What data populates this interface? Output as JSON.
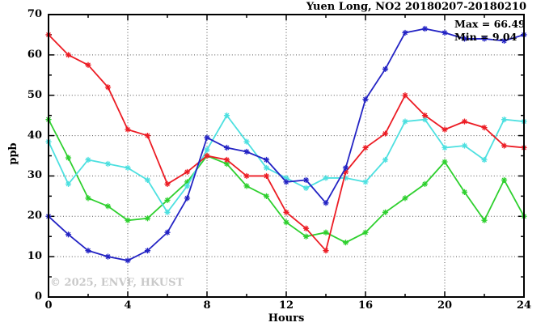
{
  "chart_data": {
    "type": "line",
    "title": "Yuen Long, NO2 20180207-20180210",
    "xlabel": "Hours",
    "ylabel": "ppb",
    "xlim": [
      0,
      24
    ],
    "ylim": [
      0,
      70
    ],
    "x_ticks": [
      0,
      4,
      8,
      12,
      16,
      20,
      24
    ],
    "y_ticks": [
      0,
      10,
      20,
      30,
      40,
      50,
      60,
      70
    ],
    "x_minor_step": 2,
    "y_minor_step": 5,
    "grid": "dotted at major ticks",
    "legend_position": "none",
    "x": [
      0,
      1,
      2,
      3,
      4,
      5,
      6,
      7,
      8,
      9,
      10,
      11,
      12,
      13,
      14,
      15,
      16,
      17,
      18,
      19,
      20,
      21,
      22,
      23,
      24
    ],
    "series": [
      {
        "name": "green",
        "color": "#2ed02e",
        "values": [
          44,
          34.5,
          24.5,
          22.5,
          19,
          19.5,
          24,
          28.5,
          35,
          33,
          27.5,
          25,
          18.5,
          15,
          16,
          13.5,
          16,
          21,
          24.5,
          28,
          33.5,
          26,
          19,
          29,
          20
        ]
      },
      {
        "name": "cyan",
        "color": "#4de0e0",
        "values": [
          38.5,
          28,
          34,
          33,
          32,
          29,
          21,
          27.5,
          36.5,
          45,
          38.5,
          32,
          29.5,
          27,
          29.5,
          29.5,
          28.5,
          34,
          43.5,
          44,
          37,
          37.5,
          34,
          44,
          43.5
        ]
      },
      {
        "name": "red",
        "color": "#ec1c24",
        "values": [
          65,
          60,
          57.5,
          52,
          41.5,
          40,
          28,
          31,
          35,
          34,
          30,
          30,
          21,
          17,
          11.5,
          31,
          37,
          40.5,
          50,
          45,
          41.5,
          43.5,
          42,
          37.5,
          37
        ]
      },
      {
        "name": "blue",
        "color": "#2323c4",
        "values": [
          20,
          15.5,
          11.5,
          10,
          9.04,
          11.5,
          16,
          24.5,
          39.5,
          37,
          36,
          34,
          28.5,
          29,
          23.3,
          32,
          49,
          56.5,
          65.5,
          66.49,
          65.5,
          64,
          64,
          63.5,
          65
        ]
      }
    ],
    "annotations": {
      "max_label": "Max = 66.49",
      "min_label": "Min = 9.04"
    },
    "watermark": "© 2025, ENVF, HKUST",
    "grid_color": "#555555",
    "frame_color": "#000000"
  }
}
